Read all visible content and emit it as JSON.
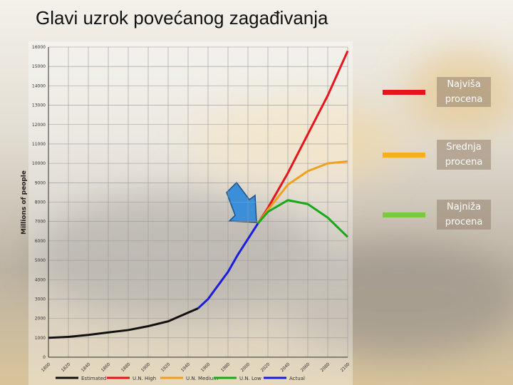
{
  "title": "Glavi uzrok povećanog zagađivanja",
  "chart_data": {
    "type": "line",
    "y_label": "Millions of people",
    "x": [
      1800,
      1820,
      1840,
      1860,
      1880,
      1900,
      1920,
      1940,
      1950,
      1960,
      1970,
      1980,
      1990,
      2000,
      2010,
      2020,
      2040,
      2060,
      2080,
      2100
    ],
    "series": [
      {
        "name": "Estimated",
        "color": "#111111",
        "values": [
          1000,
          1050,
          1150,
          1280,
          1400,
          1600,
          1850,
          2300,
          2520,
          null,
          null,
          null,
          null,
          null,
          null,
          null,
          null,
          null,
          null,
          null
        ]
      },
      {
        "name": "U.N. High",
        "color": "#e8141c",
        "values": [
          null,
          null,
          null,
          null,
          null,
          null,
          null,
          null,
          null,
          null,
          null,
          null,
          null,
          null,
          6900,
          7700,
          9500,
          11500,
          13500,
          15800
        ]
      },
      {
        "name": "U.N. Medium",
        "color": "#f0a020",
        "values": [
          null,
          null,
          null,
          null,
          null,
          null,
          null,
          null,
          null,
          null,
          null,
          null,
          null,
          null,
          6900,
          7600,
          8900,
          9600,
          10000,
          10100
        ]
      },
      {
        "name": "U.N. Low",
        "color": "#18a818",
        "values": [
          null,
          null,
          null,
          null,
          null,
          null,
          null,
          null,
          null,
          null,
          null,
          null,
          null,
          null,
          6900,
          7500,
          8100,
          7900,
          7200,
          6200
        ]
      },
      {
        "name": "Actual",
        "color": "#1c1ce0",
        "values": [
          null,
          null,
          null,
          null,
          null,
          null,
          null,
          null,
          2520,
          3000,
          3700,
          4400,
          5300,
          6100,
          6900,
          null,
          null,
          null,
          null,
          null
        ]
      }
    ],
    "xlim": [
      1800,
      2100
    ],
    "xticks": [
      1800,
      1820,
      1840,
      1860,
      1880,
      1900,
      1920,
      1940,
      1960,
      1980,
      2000,
      2020,
      2040,
      2060,
      2080,
      2100
    ],
    "ylim": [
      0,
      16000
    ],
    "yticks": [
      0,
      1000,
      2000,
      3000,
      4000,
      5000,
      6000,
      7000,
      8000,
      9000,
      10000,
      11000,
      12000,
      13000,
      14000,
      15000,
      16000
    ],
    "grid": true,
    "callouts": [
      {
        "text": "Najviša procena",
        "color": "#e8141c"
      },
      {
        "text": "Srednja procena",
        "color": "#f5b020"
      },
      {
        "text": "Najniža procena",
        "color": "#7cc840"
      }
    ]
  }
}
